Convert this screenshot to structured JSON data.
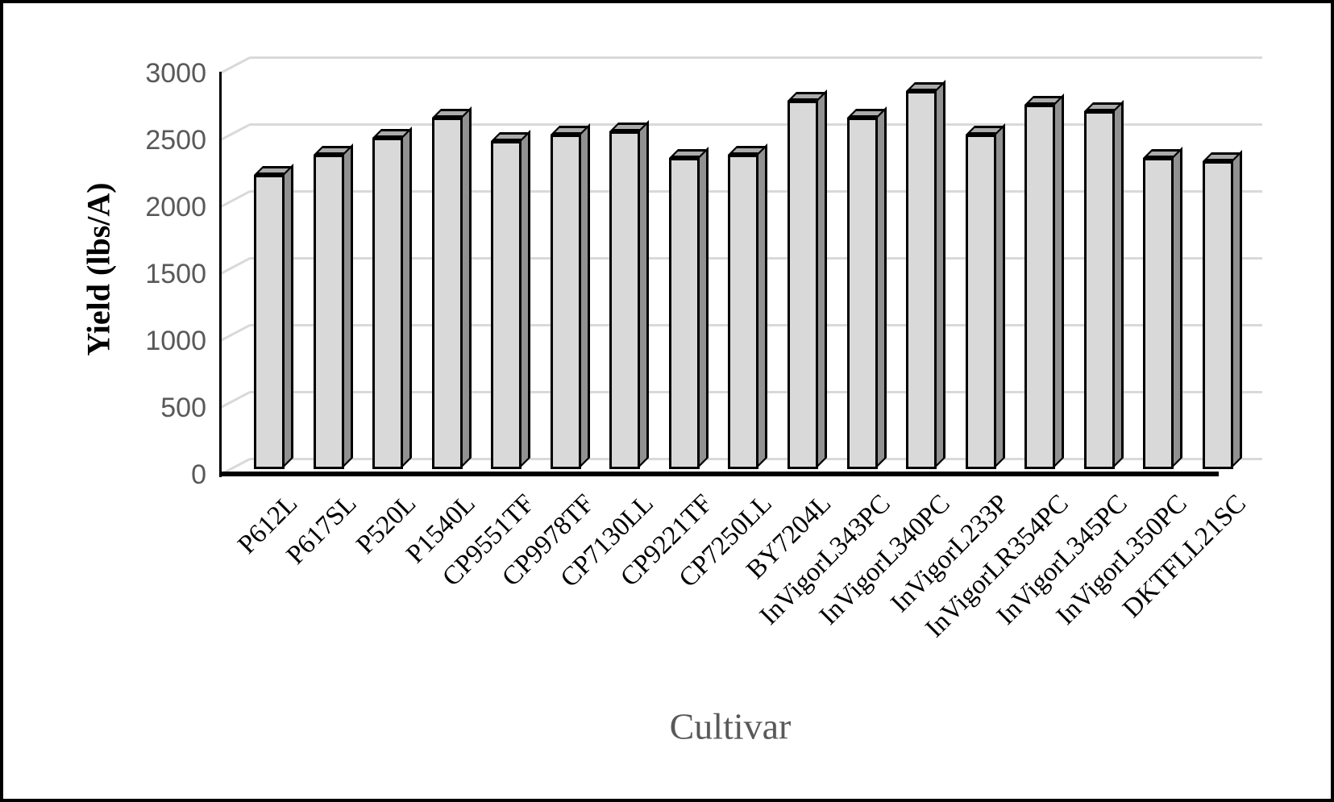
{
  "chart_data": {
    "type": "bar",
    "title": "",
    "xlabel": "Cultivar",
    "ylabel": "Yield (lbs/A)",
    "categories": [
      "P612L",
      "P617SL",
      "P520L",
      "P1540L",
      "CP9551TF",
      "CP9978TF",
      "CP7130LL",
      "CP9221TF",
      "CP7250LL",
      "BY7204L",
      "InVigorL343PC",
      "InVigorL340PC",
      "InVigorL233P",
      "InVigorLR354PC",
      "InVigorL345PC",
      "InVigorL350PC",
      "DKTFLL21SC"
    ],
    "values": [
      2200,
      2350,
      2475,
      2625,
      2450,
      2500,
      2525,
      2325,
      2350,
      2750,
      2625,
      2825,
      2500,
      2725,
      2675,
      2325,
      2300
    ],
    "yticks": [
      0,
      500,
      1000,
      1500,
      2000,
      2500,
      3000
    ],
    "ylim": [
      0,
      3000
    ],
    "grid": true,
    "legend": false,
    "style": "3d-column",
    "colors": {
      "bar_front": "#d9d9d9",
      "bar_top": "#ababab",
      "bar_side": "#919191",
      "bar_border": "#000000",
      "gridline": "#d9d9d9",
      "axis_line": "#000000",
      "tick_text": "#595959",
      "category_text": "#000000",
      "x_title_text": "#595959",
      "y_title_text": "#000000",
      "background": "#ffffff"
    }
  }
}
